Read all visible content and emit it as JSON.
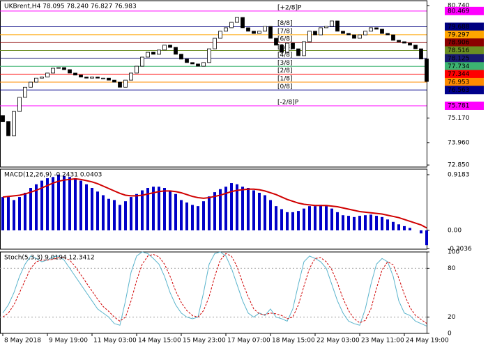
{
  "chart_data": [
    {
      "type": "candlestick",
      "title": "UKBrent,H4 78.095 78.240 76.827 76.983",
      "categories": [
        "8 May 2018",
        null,
        null,
        null,
        null,
        null,
        null,
        null,
        "9 May 19:00",
        null,
        null,
        null,
        null,
        null,
        null,
        null,
        "11 May 03:00",
        null,
        null,
        null,
        null,
        null,
        null,
        null,
        "14 May 15:00",
        null,
        null,
        null,
        null,
        null,
        null,
        null,
        "15 May 23:00",
        null,
        null,
        null,
        null,
        null,
        null,
        null,
        "17 May 07:00",
        null,
        null,
        null,
        null,
        null,
        null,
        null,
        "18 May 15:00",
        null,
        null,
        null,
        null,
        null,
        null,
        null,
        "22 May 03:00",
        null,
        null,
        null,
        null,
        null,
        null,
        null,
        "23 May 11:00",
        null,
        null,
        null,
        null,
        null,
        null,
        null,
        "24 May 19:00",
        null,
        null,
        null,
        null
      ],
      "open": [
        75.3,
        75.0,
        74.3,
        75.5,
        76.2,
        76.7,
        76.95,
        77.15,
        77.2,
        77.4,
        77.64,
        77.67,
        77.57,
        77.4,
        77.3,
        77.2,
        77.15,
        77.2,
        77.15,
        77.15,
        77.05,
        76.95,
        76.7,
        77.05,
        77.4,
        77.74,
        78.19,
        78.43,
        78.33,
        78.54,
        78.78,
        78.67,
        78.33,
        78.09,
        77.92,
        77.85,
        77.74,
        77.92,
        78.6,
        79.12,
        79.47,
        79.64,
        79.91,
        80.15,
        79.64,
        79.47,
        79.36,
        79.47,
        79.71,
        79.12,
        78.78,
        78.43,
        78.88,
        78.6,
        78.26,
        78.95,
        79.47,
        79.29,
        79.64,
        79.71,
        79.98,
        79.47,
        79.36,
        79.29,
        79.12,
        79.29,
        79.47,
        79.64,
        79.57,
        79.36,
        79.29,
        79.02,
        78.95,
        78.88,
        78.78,
        78.6,
        78.095
      ],
      "close": [
        75.0,
        74.3,
        75.5,
        76.2,
        76.7,
        76.95,
        77.15,
        77.2,
        77.4,
        77.64,
        77.67,
        77.57,
        77.4,
        77.3,
        77.2,
        77.15,
        77.2,
        77.15,
        77.15,
        77.05,
        76.95,
        76.7,
        77.05,
        77.4,
        77.74,
        78.19,
        78.43,
        78.33,
        78.54,
        78.78,
        78.67,
        78.33,
        78.09,
        77.92,
        77.85,
        77.74,
        77.92,
        78.6,
        79.12,
        79.47,
        79.64,
        79.91,
        80.15,
        79.64,
        79.47,
        79.36,
        79.47,
        79.71,
        79.12,
        78.78,
        78.43,
        78.88,
        78.6,
        78.26,
        78.95,
        79.47,
        79.29,
        79.64,
        79.71,
        79.98,
        79.47,
        79.36,
        79.29,
        79.12,
        79.29,
        79.47,
        79.64,
        79.57,
        79.36,
        79.29,
        79.02,
        78.95,
        78.88,
        78.78,
        78.6,
        78.095,
        76.983
      ],
      "ylim": [
        72.75,
        80.98
      ],
      "yticks": [
        {
          "value": 80.74,
          "label": "80.740"
        },
        {
          "value": 75.17,
          "label": "75.170"
        },
        {
          "value": 73.96,
          "label": "73.960"
        },
        {
          "value": 72.85,
          "label": "72.850"
        }
      ],
      "levels": [
        {
          "name": "[+2/8]P",
          "value": 80.469,
          "color": "#ff00ff"
        },
        {
          "name": "[8/8]",
          "value": 79.688,
          "color": "#000080"
        },
        {
          "name": "[7/8]",
          "value": 79.297,
          "color": "#ffa500"
        },
        {
          "name": "[6/8]",
          "value": 78.906,
          "color": "#8b0000"
        },
        {
          "name": "[5/8]",
          "value": 78.516,
          "color": "#6b8e23"
        },
        {
          "name": "[4/8]",
          "value": 78.125,
          "color": "#191970"
        },
        {
          "name": "[3/8]",
          "value": 77.734,
          "color": "#3cb371"
        },
        {
          "name": "[2/8]",
          "value": 77.344,
          "color": "#ff0000"
        },
        {
          "name": "[1/8]",
          "value": 76.953,
          "color": "#ff8c00"
        },
        {
          "name": "[0/8]",
          "value": 76.563,
          "color": "#00008b"
        },
        {
          "name": "[-2/8]P",
          "value": 75.781,
          "color": "#ff00ff"
        }
      ]
    },
    {
      "type": "macd",
      "title": "MACD(12,26,9) -0.2431 0.0403",
      "values": [
        0.55,
        0.55,
        0.5,
        0.55,
        0.62,
        0.7,
        0.76,
        0.82,
        0.86,
        0.88,
        0.92,
        0.9,
        0.88,
        0.86,
        0.82,
        0.76,
        0.7,
        0.64,
        0.58,
        0.52,
        0.5,
        0.42,
        0.48,
        0.55,
        0.6,
        0.66,
        0.7,
        0.72,
        0.72,
        0.7,
        0.66,
        0.6,
        0.5,
        0.46,
        0.42,
        0.4,
        0.48,
        0.56,
        0.63,
        0.68,
        0.72,
        0.78,
        0.76,
        0.72,
        0.7,
        0.66,
        0.62,
        0.58,
        0.5,
        0.4,
        0.35,
        0.3,
        0.3,
        0.32,
        0.36,
        0.4,
        0.4,
        0.42,
        0.4,
        0.36,
        0.3,
        0.25,
        0.24,
        0.22,
        0.24,
        0.25,
        0.26,
        0.24,
        0.22,
        0.18,
        0.14,
        0.1,
        0.07,
        0.04,
        0.0,
        -0.05,
        -0.2431
      ],
      "color": "#0000c8",
      "signal_values": [
        0.55,
        0.56,
        0.57,
        0.58,
        0.6,
        0.63,
        0.66,
        0.7,
        0.74,
        0.78,
        0.81,
        0.83,
        0.84,
        0.85,
        0.84,
        0.82,
        0.8,
        0.77,
        0.73,
        0.69,
        0.65,
        0.61,
        0.58,
        0.57,
        0.57,
        0.58,
        0.6,
        0.62,
        0.64,
        0.65,
        0.65,
        0.64,
        0.62,
        0.59,
        0.56,
        0.54,
        0.53,
        0.54,
        0.56,
        0.58,
        0.61,
        0.64,
        0.66,
        0.67,
        0.68,
        0.68,
        0.67,
        0.65,
        0.62,
        0.59,
        0.55,
        0.51,
        0.48,
        0.45,
        0.43,
        0.42,
        0.41,
        0.41,
        0.41,
        0.4,
        0.39,
        0.37,
        0.35,
        0.33,
        0.31,
        0.3,
        0.29,
        0.28,
        0.27,
        0.25,
        0.23,
        0.21,
        0.18,
        0.15,
        0.12,
        0.09,
        0.0403
      ],
      "signal_color": "#d00000",
      "ylim": [
        -0.31,
        1.01
      ],
      "yticks": [
        0.9183,
        {
          "value": 0,
          "label": "0.00"
        },
        -0.3036
      ]
    },
    {
      "type": "stochastic",
      "title": "Stoch(5,3,3) 9.0194 12.3412",
      "values": [
        25,
        35,
        50,
        70,
        85,
        95,
        92,
        88,
        90,
        94,
        95,
        90,
        80,
        70,
        60,
        50,
        40,
        30,
        25,
        20,
        12,
        10,
        40,
        75,
        95,
        100,
        98,
        92,
        85,
        70,
        50,
        35,
        25,
        20,
        18,
        20,
        50,
        85,
        98,
        100,
        95,
        80,
        60,
        40,
        25,
        20,
        25,
        22,
        30,
        20,
        18,
        15,
        30,
        60,
        88,
        95,
        92,
        88,
        80,
        60,
        40,
        25,
        15,
        12,
        10,
        30,
        60,
        85,
        92,
        88,
        70,
        40,
        25,
        22,
        15,
        12,
        9.0194
      ],
      "color": "#5ab4cc",
      "signal_values": [
        20,
        25,
        35,
        50,
        65,
        80,
        88,
        90,
        90,
        91,
        93,
        93,
        90,
        82,
        72,
        62,
        52,
        42,
        33,
        27,
        20,
        15,
        20,
        40,
        65,
        85,
        95,
        97,
        94,
        85,
        70,
        52,
        38,
        28,
        22,
        20,
        28,
        45,
        70,
        90,
        98,
        95,
        82,
        62,
        45,
        30,
        24,
        23,
        25,
        24,
        22,
        18,
        20,
        35,
        58,
        80,
        92,
        93,
        88,
        78,
        62,
        43,
        28,
        18,
        13,
        16,
        30,
        55,
        78,
        88,
        84,
        68,
        48,
        32,
        22,
        17,
        12.3412
      ],
      "signal_color": "#d00000",
      "ylim": [
        0,
        100
      ],
      "yticks": [
        100,
        80,
        20,
        0
      ]
    }
  ]
}
